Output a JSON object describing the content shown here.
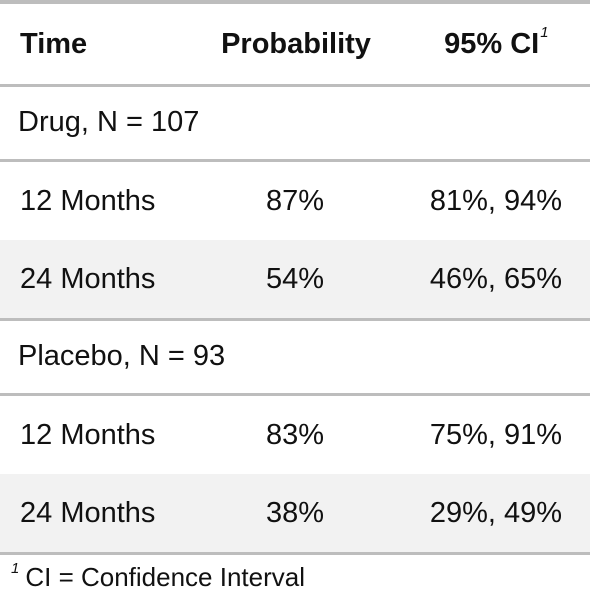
{
  "table": {
    "headers": {
      "time": "Time",
      "probability": "Probability",
      "ci": "95% CI",
      "ci_footnote_mark": "1"
    },
    "groups": [
      {
        "label": "Drug, N = 107",
        "rows": [
          {
            "time": "12 Months",
            "probability": "87%",
            "ci": "81%, 94%"
          },
          {
            "time": "24 Months",
            "probability": "54%",
            "ci": "46%, 65%"
          }
        ]
      },
      {
        "label": "Placebo, N = 93",
        "rows": [
          {
            "time": "12 Months",
            "probability": "83%",
            "ci": "75%, 91%"
          },
          {
            "time": "24 Months",
            "probability": "38%",
            "ci": "29%, 49%"
          }
        ]
      }
    ]
  },
  "footnote": {
    "mark": "1",
    "text": "CI = Confidence Interval"
  }
}
